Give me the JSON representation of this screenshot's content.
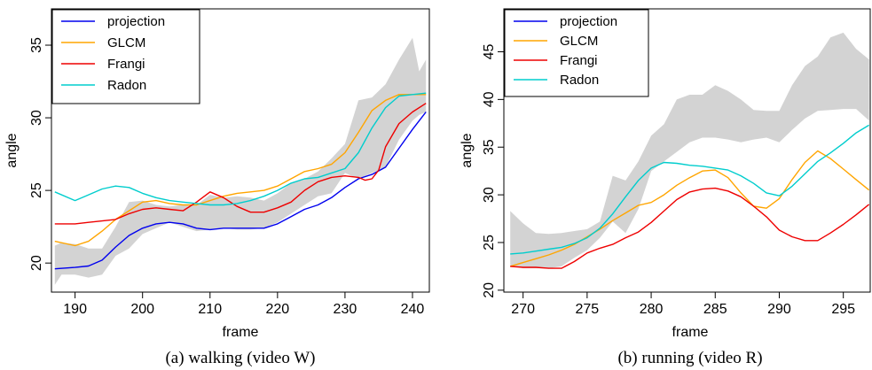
{
  "chart_data": [
    {
      "type": "line",
      "caption": "(a) walking (video W)",
      "xlabel": "frame",
      "ylabel": "angle",
      "xlim": [
        186.5,
        242.5
      ],
      "ylim": [
        18.0,
        37.5
      ],
      "xticks": [
        190,
        200,
        210,
        220,
        230,
        240
      ],
      "yticks": [
        20,
        25,
        30,
        35
      ],
      "legend_position": "top-left",
      "band": {
        "color": "#d3d3d3",
        "x": [
          187,
          188,
          190,
          192,
          194,
          196,
          198,
          200,
          202,
          204,
          206,
          208,
          210,
          212,
          214,
          216,
          218,
          220,
          222,
          224,
          226,
          228,
          230,
          232,
          234,
          236,
          238,
          240,
          241,
          242
        ],
        "upper": [
          21.2,
          21.4,
          21.3,
          21.0,
          21.0,
          22.5,
          24.2,
          24.3,
          24.0,
          23.9,
          24.0,
          24.0,
          24.7,
          24.5,
          24.6,
          24.5,
          24.3,
          24.8,
          25.5,
          25.8,
          26.3,
          27.2,
          28.2,
          31.2,
          31.4,
          32.3,
          34.0,
          35.5,
          33.2,
          34.0
        ],
        "lower": [
          18.5,
          19.2,
          19.2,
          19.0,
          19.2,
          20.5,
          21.0,
          22.0,
          22.4,
          22.8,
          22.5,
          22.2,
          22.3,
          22.4,
          22.3,
          22.3,
          22.4,
          22.8,
          23.4,
          24.0,
          24.6,
          24.8,
          26.2,
          25.8,
          26.2,
          26.6,
          28.5,
          29.8,
          30.2,
          30.4
        ]
      },
      "series": [
        {
          "name": "projection",
          "color": "#0000ee",
          "x": [
            187,
            190,
            192,
            194,
            196,
            198,
            200,
            202,
            204,
            206,
            208,
            210,
            212,
            214,
            216,
            218,
            220,
            222,
            224,
            226,
            228,
            230,
            232,
            234,
            236,
            238,
            240,
            242
          ],
          "y": [
            19.6,
            19.7,
            19.8,
            20.2,
            21.1,
            21.9,
            22.4,
            22.7,
            22.8,
            22.7,
            22.4,
            22.3,
            22.4,
            22.4,
            22.4,
            22.4,
            22.7,
            23.2,
            23.7,
            24.0,
            24.5,
            25.2,
            25.8,
            26.1,
            26.6,
            27.9,
            29.2,
            30.4
          ]
        },
        {
          "name": "GLCM",
          "color": "#ffa500",
          "x": [
            187,
            190,
            192,
            194,
            196,
            198,
            200,
            202,
            204,
            206,
            208,
            210,
            212,
            214,
            216,
            218,
            220,
            222,
            224,
            226,
            228,
            230,
            232,
            234,
            236,
            238,
            240,
            242
          ],
          "y": [
            21.5,
            21.2,
            21.5,
            22.2,
            23.0,
            23.6,
            24.2,
            24.3,
            24.1,
            24.0,
            24.0,
            24.3,
            24.6,
            24.8,
            24.9,
            25.0,
            25.3,
            25.8,
            26.3,
            26.5,
            26.8,
            27.6,
            29.0,
            30.5,
            31.2,
            31.6,
            31.6,
            31.6
          ]
        },
        {
          "name": "Frangi",
          "color": "#ee0000",
          "x": [
            187,
            190,
            192,
            194,
            196,
            198,
            200,
            202,
            204,
            206,
            208,
            210,
            212,
            214,
            216,
            218,
            220,
            222,
            224,
            226,
            228,
            230,
            232,
            233,
            234,
            235,
            236,
            238,
            240,
            242
          ],
          "y": [
            22.7,
            22.7,
            22.8,
            22.9,
            23.0,
            23.4,
            23.7,
            23.8,
            23.7,
            23.6,
            24.2,
            24.9,
            24.5,
            23.9,
            23.5,
            23.5,
            23.8,
            24.2,
            25.0,
            25.6,
            25.9,
            26.0,
            25.9,
            25.7,
            25.8,
            26.4,
            28.0,
            29.6,
            30.4,
            31.0
          ]
        },
        {
          "name": "Radon",
          "color": "#00cdcd",
          "x": [
            187,
            190,
            192,
            194,
            196,
            198,
            200,
            202,
            204,
            206,
            208,
            210,
            212,
            214,
            216,
            218,
            220,
            222,
            224,
            226,
            228,
            230,
            232,
            234,
            236,
            238,
            240,
            242
          ],
          "y": [
            24.9,
            24.3,
            24.7,
            25.1,
            25.3,
            25.2,
            24.8,
            24.5,
            24.3,
            24.2,
            24.1,
            24.0,
            24.0,
            24.1,
            24.3,
            24.6,
            25.0,
            25.5,
            25.8,
            25.9,
            26.2,
            26.5,
            27.6,
            29.3,
            30.7,
            31.5,
            31.6,
            31.7
          ]
        }
      ]
    },
    {
      "type": "line",
      "caption": "(b) running (video R)",
      "xlabel": "frame",
      "ylabel": "angle",
      "xlim": [
        268.5,
        297.1
      ],
      "ylim": [
        19.8,
        49.5
      ],
      "xticks": [
        270,
        275,
        280,
        285,
        290,
        295
      ],
      "yticks": [
        20,
        25,
        30,
        35,
        40,
        45
      ],
      "legend_position": "top-left",
      "band": {
        "color": "#d3d3d3",
        "x": [
          269,
          270,
          271,
          272,
          273,
          274,
          275,
          276,
          277,
          278,
          279,
          280,
          281,
          282,
          283,
          284,
          285,
          286,
          287,
          288,
          289,
          290,
          291,
          292,
          293,
          294,
          295,
          296,
          297
        ],
        "upper": [
          28.3,
          27.0,
          26.0,
          25.9,
          26.0,
          26.2,
          26.4,
          27.2,
          32.0,
          31.5,
          33.5,
          36.2,
          37.4,
          40.0,
          40.5,
          40.5,
          41.5,
          40.9,
          40.0,
          38.9,
          38.8,
          38.8,
          41.5,
          43.5,
          44.5,
          46.5,
          47.0,
          45.3,
          44.2
        ],
        "lower": [
          22.6,
          22.3,
          22.3,
          22.3,
          22.5,
          23.4,
          24.2,
          25.5,
          27.2,
          26.0,
          28.5,
          32.5,
          33.5,
          34.5,
          35.5,
          36.0,
          36.0,
          35.8,
          35.5,
          35.8,
          36.0,
          35.5,
          36.8,
          38.0,
          38.8,
          38.9,
          39.0,
          39.0,
          37.8
        ]
      },
      "series": [
        {
          "name": "projection",
          "color": "#0000ee",
          "x": [
            269,
            270,
            271,
            272,
            273,
            274,
            275,
            276,
            277,
            278,
            279,
            280,
            281,
            282,
            283,
            284,
            285,
            286,
            287,
            288,
            289,
            290,
            291,
            292,
            293,
            294,
            295,
            296,
            297
          ],
          "y": [
            null,
            null,
            null,
            null,
            null,
            null,
            null,
            null,
            null,
            null,
            null,
            null,
            null,
            null,
            null,
            null,
            null,
            null,
            null,
            null,
            null,
            null,
            null,
            null,
            null,
            null,
            null,
            null,
            null
          ]
        },
        {
          "name": "GLCM",
          "color": "#ffa500",
          "x": [
            269,
            270,
            271,
            272,
            273,
            274,
            275,
            276,
            277,
            278,
            279,
            280,
            281,
            282,
            283,
            284,
            285,
            286,
            287,
            288,
            289,
            290,
            291,
            292,
            293,
            294,
            295,
            296,
            297
          ],
          "y": [
            22.5,
            22.9,
            23.3,
            23.7,
            24.2,
            24.8,
            25.6,
            26.4,
            27.3,
            28.1,
            28.9,
            29.2,
            30.0,
            31.0,
            31.8,
            32.5,
            32.6,
            31.8,
            30.2,
            28.8,
            28.6,
            29.6,
            31.6,
            33.4,
            34.6,
            33.8,
            32.7,
            31.6,
            30.5
          ]
        },
        {
          "name": "Frangi",
          "color": "#ee0000",
          "x": [
            269,
            270,
            271,
            272,
            273,
            274,
            275,
            276,
            277,
            278,
            279,
            280,
            281,
            282,
            283,
            284,
            285,
            286,
            287,
            288,
            289,
            290,
            291,
            292,
            293,
            294,
            295,
            296,
            297
          ],
          "y": [
            22.5,
            22.4,
            22.4,
            22.3,
            22.3,
            23.0,
            23.9,
            24.4,
            24.8,
            25.5,
            26.1,
            27.1,
            28.3,
            29.5,
            30.3,
            30.6,
            30.7,
            30.4,
            29.8,
            28.8,
            27.7,
            26.3,
            25.6,
            25.2,
            25.2,
            26.0,
            26.9,
            27.9,
            29.0
          ]
        },
        {
          "name": "Radon",
          "color": "#00cdcd",
          "x": [
            269,
            270,
            271,
            272,
            273,
            274,
            275,
            276,
            277,
            278,
            279,
            280,
            281,
            282,
            283,
            284,
            285,
            286,
            287,
            288,
            289,
            290,
            291,
            292,
            293,
            294,
            295,
            296,
            297
          ],
          "y": [
            23.8,
            23.9,
            24.1,
            24.3,
            24.5,
            24.9,
            25.5,
            26.5,
            28.0,
            29.8,
            31.5,
            32.8,
            33.4,
            33.3,
            33.1,
            33.0,
            32.8,
            32.6,
            32.0,
            31.2,
            30.2,
            29.9,
            30.9,
            32.2,
            33.5,
            34.4,
            35.4,
            36.5,
            37.3
          ]
        }
      ]
    }
  ]
}
